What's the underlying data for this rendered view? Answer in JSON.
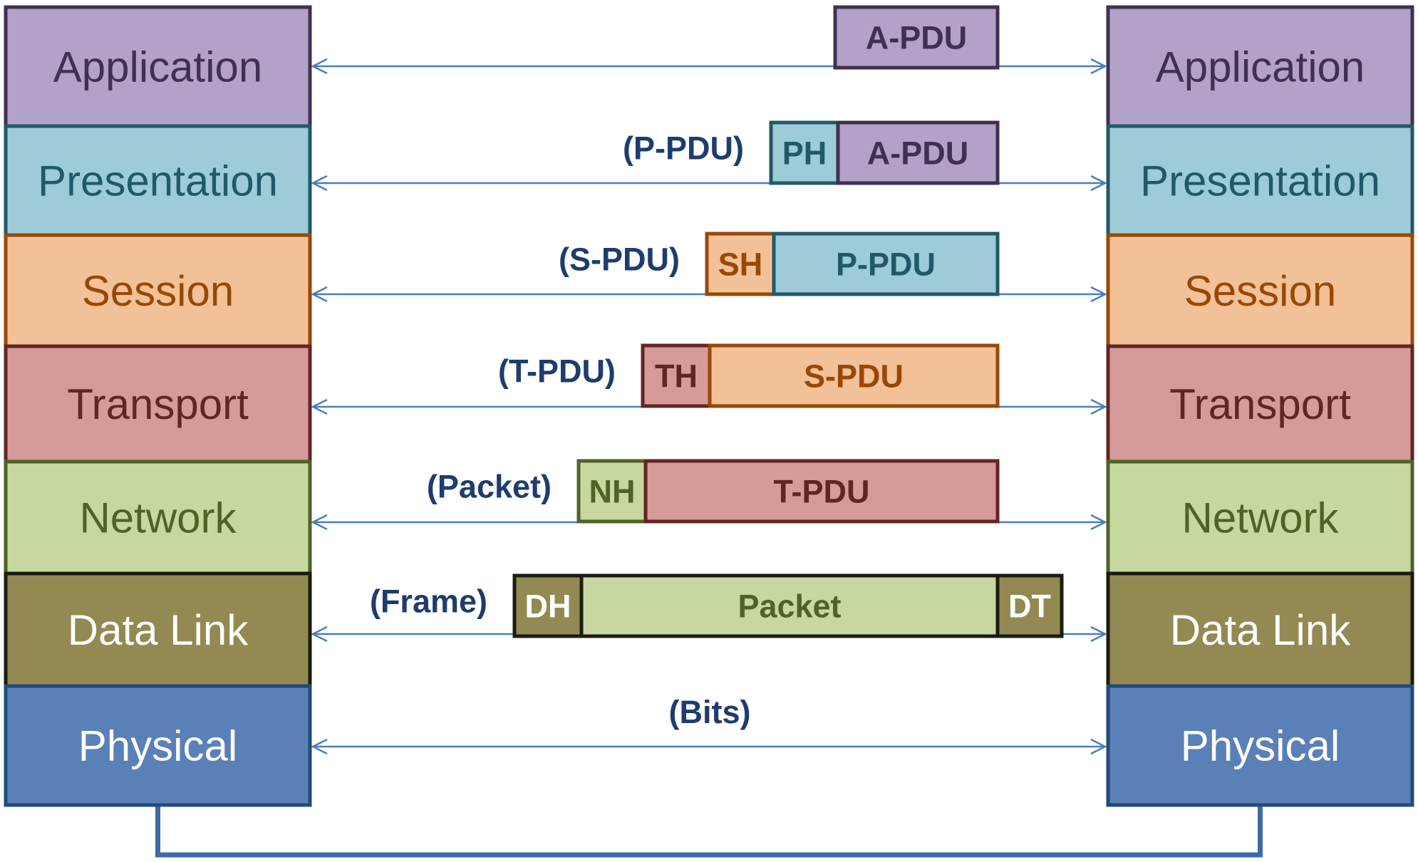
{
  "stacks": {
    "left": [
      {
        "label": "Application",
        "fill": "#b2a2c7",
        "stroke": "#3f3151",
        "text_color": "#3f3151"
      },
      {
        "label": "Presentation",
        "fill": "#9ecbd8",
        "stroke": "#215968",
        "text_color": "#215968"
      },
      {
        "label": "Session",
        "fill": "#f2c198",
        "stroke": "#984807",
        "text_color": "#984807"
      },
      {
        "label": "Transport",
        "fill": "#d69a98",
        "stroke": "#632523",
        "text_color": "#632523"
      },
      {
        "label": "Network",
        "fill": "#c6d8a0",
        "stroke": "#4f6228",
        "text_color": "#4f6228"
      },
      {
        "label": "Data Link",
        "fill": "#938953",
        "stroke": "#1d1b10",
        "text_color": "#ffffff"
      },
      {
        "label": "Physical",
        "fill": "#5a80b8",
        "stroke": "#244a7c",
        "text_color": "#ffffff"
      }
    ],
    "right": [
      {
        "label": "Application",
        "fill": "#b2a2c7",
        "stroke": "#3f3151",
        "text_color": "#3f3151"
      },
      {
        "label": "Presentation",
        "fill": "#9ecbd8",
        "stroke": "#215968",
        "text_color": "#215968"
      },
      {
        "label": "Session",
        "fill": "#f2c198",
        "stroke": "#984807",
        "text_color": "#984807"
      },
      {
        "label": "Transport",
        "fill": "#d69a98",
        "stroke": "#632523",
        "text_color": "#632523"
      },
      {
        "label": "Network",
        "fill": "#c6d8a0",
        "stroke": "#4f6228",
        "text_color": "#4f6228"
      },
      {
        "label": "Data Link",
        "fill": "#938953",
        "stroke": "#1d1b10",
        "text_color": "#ffffff"
      },
      {
        "label": "Physical",
        "fill": "#5a80b8",
        "stroke": "#244a7c",
        "text_color": "#ffffff"
      }
    ]
  },
  "exchanges": [
    {
      "unit_label": "",
      "segments": [
        {
          "label": "A-PDU",
          "fill": "#b2a2c7",
          "stroke": "#3f3151",
          "text_color": "#3f3151"
        }
      ]
    },
    {
      "unit_label": "(P-PDU)",
      "segments": [
        {
          "label": "PH",
          "fill": "#9ecbd8",
          "stroke": "#215968",
          "text_color": "#215968"
        },
        {
          "label": "A-PDU",
          "fill": "#b2a2c7",
          "stroke": "#3f3151",
          "text_color": "#3f3151"
        }
      ]
    },
    {
      "unit_label": "(S-PDU)",
      "segments": [
        {
          "label": "SH",
          "fill": "#f2c198",
          "stroke": "#984807",
          "text_color": "#984807"
        },
        {
          "label": "P-PDU",
          "fill": "#9ecbd8",
          "stroke": "#215968",
          "text_color": "#215968"
        }
      ]
    },
    {
      "unit_label": "(T-PDU)",
      "segments": [
        {
          "label": "TH",
          "fill": "#d69a98",
          "stroke": "#632523",
          "text_color": "#632523"
        },
        {
          "label": "S-PDU",
          "fill": "#f2c198",
          "stroke": "#984807",
          "text_color": "#984807"
        }
      ]
    },
    {
      "unit_label": "(Packet)",
      "segments": [
        {
          "label": "NH",
          "fill": "#c6d8a0",
          "stroke": "#4f6228",
          "text_color": "#4f6228"
        },
        {
          "label": "T-PDU",
          "fill": "#d69a98",
          "stroke": "#632523",
          "text_color": "#632523"
        }
      ]
    },
    {
      "unit_label": "(Frame)",
      "segments": [
        {
          "label": "DH",
          "fill": "#938953",
          "stroke": "#1d1b10",
          "text_color": "#ffffff"
        },
        {
          "label": "Packet",
          "fill": "#c6d8a0",
          "stroke": "#1d1b10",
          "text_color": "#4f6228"
        },
        {
          "label": "DT",
          "fill": "#938953",
          "stroke": "#1d1b10",
          "text_color": "#ffffff"
        }
      ]
    },
    {
      "unit_label": "(Bits)",
      "segments": []
    }
  ],
  "colors": {
    "arrow": "#4a7ebb",
    "unit_label": "#1f3c6e",
    "physical_link": "#3d6aa8"
  }
}
